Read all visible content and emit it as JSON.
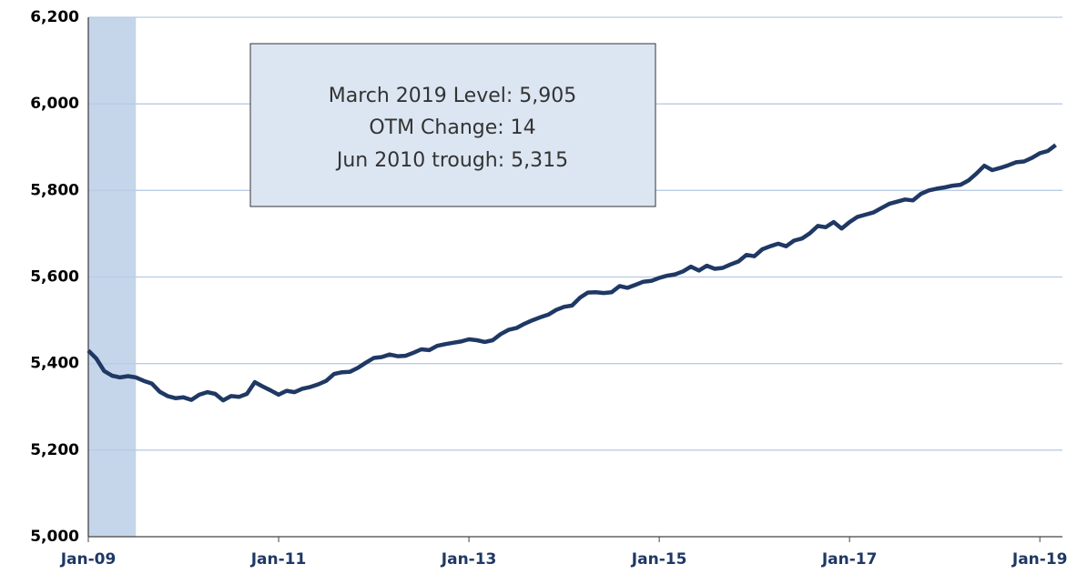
{
  "chart_data": {
    "type": "line",
    "categories": [
      "Jan-09",
      null,
      null,
      null,
      null,
      null,
      null,
      null,
      null,
      null,
      null,
      null,
      null,
      null,
      null,
      null,
      null,
      null,
      null,
      null,
      null,
      null,
      null,
      null,
      "Jan-11",
      null,
      null,
      null,
      null,
      null,
      null,
      null,
      null,
      null,
      null,
      null,
      null,
      null,
      null,
      null,
      null,
      null,
      null,
      null,
      null,
      null,
      null,
      null,
      "Jan-13",
      null,
      null,
      null,
      null,
      null,
      null,
      null,
      null,
      null,
      null,
      null,
      null,
      null,
      null,
      null,
      null,
      null,
      null,
      null,
      null,
      null,
      null,
      null,
      "Jan-15",
      null,
      null,
      null,
      null,
      null,
      null,
      null,
      null,
      null,
      null,
      null,
      null,
      null,
      null,
      null,
      null,
      null,
      null,
      null,
      null,
      null,
      null,
      null,
      "Jan-17",
      null,
      null,
      null,
      null,
      null,
      null,
      null,
      null,
      null,
      null,
      null,
      null,
      null,
      null,
      null,
      null,
      null,
      null,
      null,
      null,
      null,
      null,
      null,
      "Jan-19",
      null,
      null
    ],
    "series": [
      {
        "color": "#1f3864",
        "values": [
          5430,
          5412,
          5383,
          5372,
          5368,
          5371,
          5368,
          5360,
          5354,
          5335,
          5325,
          5320,
          5322,
          5316,
          5328,
          5334,
          5330,
          5315,
          5325,
          5323,
          5330,
          5357,
          5347,
          5338,
          5328,
          5337,
          5334,
          5342,
          5346,
          5352,
          5360,
          5376,
          5380,
          5381,
          5390,
          5402,
          5413,
          5415,
          5421,
          5417,
          5418,
          5425,
          5433,
          5431,
          5441,
          5445,
          5448,
          5451,
          5456,
          5454,
          5450,
          5454,
          5468,
          5478,
          5482,
          5492,
          5500,
          5507,
          5513,
          5524,
          5531,
          5534,
          5552,
          5564,
          5565,
          5563,
          5565,
          5579,
          5575,
          5582,
          5589,
          5591,
          5598,
          5603,
          5606,
          5613,
          5624,
          5615,
          5626,
          5619,
          5621,
          5629,
          5636,
          5651,
          5648,
          5664,
          5671,
          5677,
          5671,
          5684,
          5689,
          5701,
          5718,
          5715,
          5727,
          5712,
          5727,
          5739,
          5744,
          5749,
          5759,
          5769,
          5774,
          5779,
          5777,
          5792,
          5800,
          5804,
          5807,
          5811,
          5813,
          5823,
          5839,
          5857,
          5847,
          5852,
          5858,
          5865,
          5867,
          5875,
          5886,
          5891,
          5905
        ]
      }
    ],
    "ylim": [
      5000,
      6200
    ],
    "yticks": [
      {
        "value": 5000,
        "label": "5,000"
      },
      {
        "value": 5200,
        "label": "5,200"
      },
      {
        "value": 5400,
        "label": "5,400"
      },
      {
        "value": 5600,
        "label": "5,600"
      },
      {
        "value": 5800,
        "label": "5,800"
      },
      {
        "value": 6000,
        "label": "6,000"
      },
      {
        "value": 6200,
        "label": "6,200"
      }
    ],
    "grid": true,
    "recession_shading": [
      0,
      6
    ],
    "shading_color": "#c5d5ea",
    "annotations": [
      "March 2019 Level: 5,905",
      "OTM Change: 14",
      "Jun 2010 trough: 5,315"
    ]
  }
}
